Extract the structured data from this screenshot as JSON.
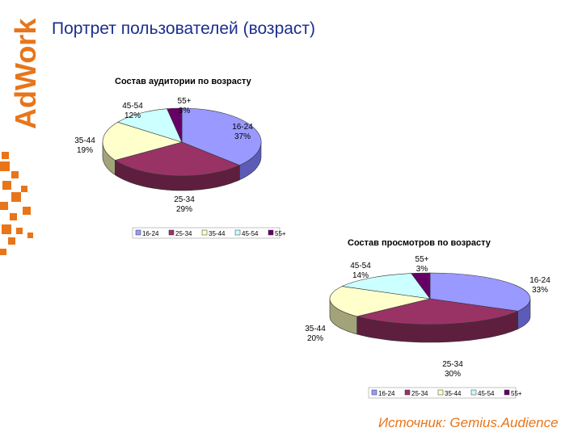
{
  "brand": {
    "logo_text": "AdWork",
    "accent_color": "#e8751a"
  },
  "page_title": "Портрет пользователей (возраст)",
  "source": "Источник: Gemius.Audience",
  "chart_data": [
    {
      "type": "pie",
      "title": "Состав аудитории по возрасту",
      "legend_placement": "bottom",
      "slices": [
        {
          "label": "16-24",
          "value": 37,
          "value_label": "37%",
          "color": "#9999ff",
          "dark": "#5c5cb8"
        },
        {
          "label": "25-34",
          "value": 29,
          "value_label": "29%",
          "color": "#993366",
          "dark": "#5e1f3e"
        },
        {
          "label": "35-44",
          "value": 19,
          "value_label": "19%",
          "color": "#ffffcc",
          "dark": "#a3a37a"
        },
        {
          "label": "45-54",
          "value": 12,
          "value_label": "12%",
          "color": "#ccffff",
          "dark": "#7fa3a3"
        },
        {
          "label": "55+",
          "value": 3,
          "value_label": "3%",
          "color": "#660066",
          "dark": "#3a003a"
        }
      ],
      "legend": [
        "16-24",
        "25-34",
        "35-44",
        "45-54",
        "55+"
      ]
    },
    {
      "type": "pie",
      "title": "Состав просмотров по возрасту",
      "legend_placement": "bottom",
      "slices": [
        {
          "label": "16-24",
          "value": 33,
          "value_label": "33%",
          "color": "#9999ff",
          "dark": "#5c5cb8"
        },
        {
          "label": "25-34",
          "value": 30,
          "value_label": "30%",
          "color": "#993366",
          "dark": "#5e1f3e"
        },
        {
          "label": "35-44",
          "value": 20,
          "value_label": "20%",
          "color": "#ffffcc",
          "dark": "#a3a37a"
        },
        {
          "label": "45-54",
          "value": 14,
          "value_label": "14%",
          "color": "#ccffff",
          "dark": "#7fa3a3"
        },
        {
          "label": "55+",
          "value": 3,
          "value_label": "3%",
          "color": "#660066",
          "dark": "#3a003a"
        }
      ],
      "legend": [
        "16-24",
        "25-34",
        "35-44",
        "45-54",
        "55+"
      ]
    }
  ]
}
